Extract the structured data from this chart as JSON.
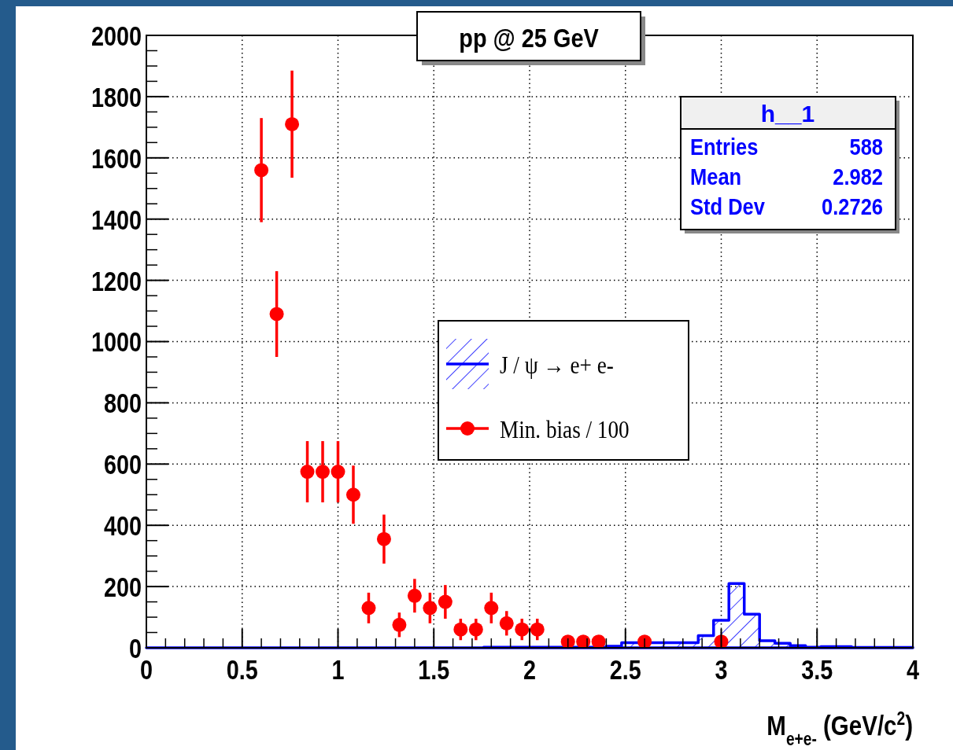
{
  "chart_data": {
    "type": "histogram",
    "title": "pp @ 25 GeV",
    "xlabel": "M$_{e+e-}$ (GeV/c$^{2}$)",
    "xlim": [
      0,
      4
    ],
    "xticks": [
      0,
      0.5,
      1,
      1.5,
      2,
      2.5,
      3,
      3.5,
      4
    ],
    "ylim": [
      0,
      2000
    ],
    "yticks": [
      0,
      200,
      400,
      600,
      800,
      1000,
      1200,
      1400,
      1600,
      1800,
      2000
    ],
    "grid": true,
    "legend": "right",
    "annotations": [
      "h__1",
      "Entries 588",
      "Mean 2.982",
      "Std Dev 0.2726"
    ],
    "series": [
      {
        "name": "J / ψ → e+ e-",
        "type": "histogram",
        "color": "#0000ff",
        "bins": [
          0,
          0.08,
          0.16,
          0.24,
          0.32,
          0.4,
          0.48,
          0.56,
          0.64,
          0.72,
          0.8,
          0.88,
          0.96,
          1.04,
          1.12,
          1.2,
          1.28,
          1.36,
          1.44,
          1.52,
          1.6,
          1.68,
          1.76,
          1.84,
          1.92,
          2,
          2.08,
          2.16,
          2.24,
          2.32,
          2.4,
          2.48,
          2.56,
          2.64,
          2.72,
          2.8,
          2.88,
          2.96,
          3.04,
          3.12,
          3.2,
          3.28,
          3.36,
          3.44,
          3.52,
          3.6,
          3.68,
          3.76,
          3.84,
          3.92,
          4
        ],
        "values": [
          0,
          0,
          0,
          0,
          0,
          0,
          0,
          0,
          0,
          0,
          0,
          0,
          0,
          0,
          0,
          0,
          0,
          0,
          0,
          0,
          0,
          0,
          2,
          2,
          2,
          2,
          2,
          2,
          2,
          2,
          5,
          17,
          17,
          17,
          17,
          17,
          40,
          90,
          210,
          110,
          23,
          15,
          7,
          2,
          4,
          4,
          1,
          1,
          1,
          1
        ]
      },
      {
        "name": "Min. bias / 100",
        "type": "scatter",
        "color": "#ff0000",
        "marker": "circle",
        "x": [
          0.6,
          0.68,
          0.76,
          0.84,
          0.92,
          1.0,
          1.08,
          1.16,
          1.24,
          1.32,
          1.4,
          1.48,
          1.56,
          1.64,
          1.72,
          1.8,
          1.88,
          1.96,
          2.04,
          2.2,
          2.28,
          2.36,
          2.6,
          3.0
        ],
        "values": [
          1560,
          1090,
          1710,
          575,
          575,
          575,
          500,
          130,
          355,
          75,
          170,
          130,
          150,
          60,
          60,
          130,
          80,
          60,
          60,
          20,
          20,
          20,
          20,
          20
        ],
        "errors": [
          170,
          140,
          175,
          100,
          100,
          100,
          95,
          50,
          80,
          40,
          55,
          50,
          55,
          35,
          35,
          50,
          40,
          35,
          35,
          15,
          15,
          15,
          15,
          15
        ]
      }
    ]
  }
}
